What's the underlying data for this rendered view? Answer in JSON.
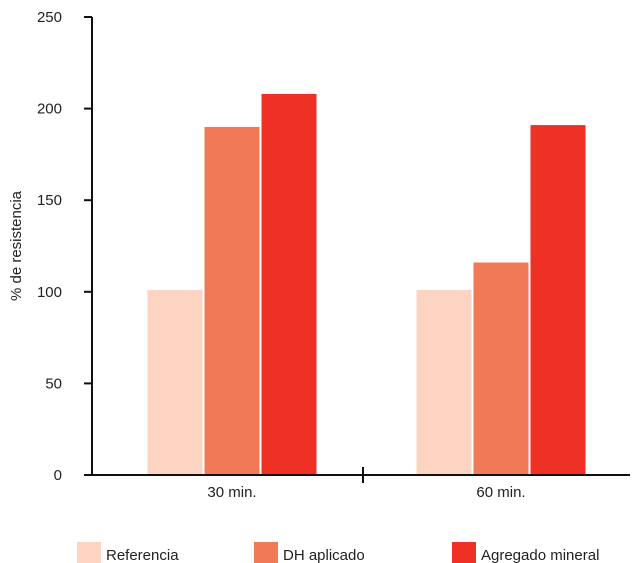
{
  "chart_data": {
    "type": "bar",
    "title": "",
    "xlabel": "",
    "ylabel": "% de resistencia",
    "categories": [
      "30 min.",
      "60 min."
    ],
    "series": [
      {
        "name": "Referencia",
        "color": "#FDD3C1",
        "values": [
          101,
          101
        ]
      },
      {
        "name": "DH aplicado",
        "color": "#F07A55",
        "values": [
          190,
          116
        ]
      },
      {
        "name": "Agregado mineral",
        "color": "#EE3124",
        "values": [
          208,
          191
        ]
      }
    ],
    "ylim": [
      0,
      250
    ],
    "yticks": [
      0,
      50,
      100,
      150,
      200,
      250
    ],
    "grid": false,
    "legend_position": "bottom"
  }
}
